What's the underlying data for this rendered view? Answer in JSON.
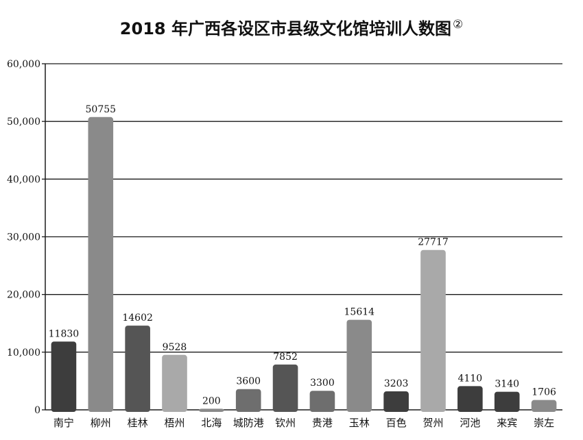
{
  "chart_data": {
    "type": "bar",
    "title": "2018 年广西各设区市县级文化馆培训人数图",
    "title_note": "②",
    "xlabel": "",
    "ylabel": "",
    "categories": [
      "南宁",
      "柳州",
      "桂林",
      "梧州",
      "北海",
      "城防港",
      "钦州",
      "贵港",
      "玉林",
      "百色",
      "贺州",
      "河池",
      "来宾",
      "崇左"
    ],
    "values": [
      11830,
      50755,
      14602,
      9528,
      200,
      3600,
      7852,
      3300,
      15614,
      3203,
      27717,
      4110,
      3140,
      1706
    ],
    "colors": [
      "#3d3d3d",
      "#8a8a8a",
      "#555555",
      "#a9a9a9",
      "#8a8a8a",
      "#6e6e6e",
      "#555555",
      "#6e6e6e",
      "#8a8a8a",
      "#3d3d3d",
      "#a9a9a9",
      "#3d3d3d",
      "#3d3d3d",
      "#8a8a8a"
    ],
    "ylim": [
      0,
      60000
    ],
    "yticks": [
      0,
      10000,
      20000,
      30000,
      40000,
      50000,
      60000
    ],
    "ytick_labels": [
      "0",
      "10,000",
      "20,000",
      "30,000",
      "40,000",
      "50,000",
      "60,000"
    ],
    "grid": true,
    "legend": "none"
  }
}
